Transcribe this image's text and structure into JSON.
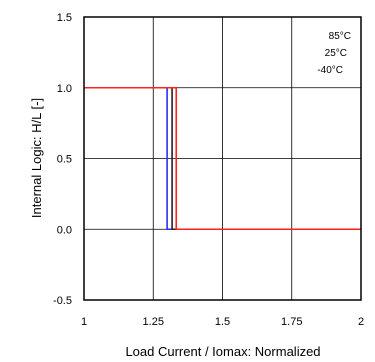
{
  "chart_data": {
    "type": "line",
    "xlabel": "Load Current / Iomax: Normalized",
    "ylabel": "Internal Logic: H/L [-]",
    "xlim": [
      1,
      2
    ],
    "ylim": [
      -0.5,
      1.5
    ],
    "xticks": [
      1,
      1.25,
      1.5,
      1.75,
      2
    ],
    "xtick_labels": [
      "1",
      "1.25",
      "1.5",
      "1.75",
      "2"
    ],
    "yticks": [
      -0.5,
      0.0,
      0.5,
      1.0,
      1.5
    ],
    "ytick_labels": [
      "-0.5",
      "0.0",
      "0.5",
      "1.0",
      "1.5"
    ],
    "grid": true,
    "legend_position": "top-right",
    "legend_entries": [
      "85°C",
      "25°C",
      "-40°C"
    ],
    "series": [
      {
        "name": "85°C",
        "color": "#2b2bff",
        "x": [
          1,
          1.3,
          1.3,
          2
        ],
        "y": [
          1,
          1,
          0,
          0
        ]
      },
      {
        "name": "25°C",
        "color": "#222222",
        "x": [
          1,
          1.318,
          1.318,
          2
        ],
        "y": [
          1,
          1,
          0,
          0
        ]
      },
      {
        "name": "-40°C",
        "color": "#ff2020",
        "x": [
          1,
          1.333,
          1.333,
          2
        ],
        "y": [
          1,
          1,
          0,
          0
        ]
      }
    ]
  }
}
